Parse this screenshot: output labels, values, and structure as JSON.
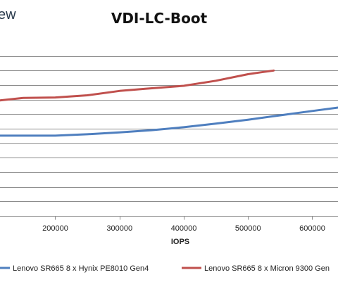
{
  "brand": {
    "text": "ew"
  },
  "chart_data": {
    "type": "line",
    "title": "VDI-LC-Boot",
    "xlabel": "IOPS",
    "ylabel": "",
    "xlim": [
      114000,
      640000
    ],
    "ylim": [
      0,
      12
    ],
    "x_ticks": [
      200000,
      300000,
      400000,
      500000,
      600000
    ],
    "x_tick_labels": [
      "200000",
      "300000",
      "400000",
      "500000",
      "600000"
    ],
    "y_gridlines": [
      1,
      2,
      3,
      4,
      5,
      6,
      7,
      8,
      9,
      10,
      11
    ],
    "grid": true,
    "legend_position": "bottom",
    "series": [
      {
        "name": "Lenovo SR665 8 x Hynix PE8010 Gen4",
        "color": "#4f7fbf",
        "points": [
          [
            114000,
            5.52
          ],
          [
            150000,
            5.52
          ],
          [
            200000,
            5.52
          ],
          [
            250000,
            5.62
          ],
          [
            300000,
            5.75
          ],
          [
            350000,
            5.9
          ],
          [
            400000,
            6.1
          ],
          [
            450000,
            6.35
          ],
          [
            500000,
            6.62
          ],
          [
            550000,
            6.92
          ],
          [
            600000,
            7.22
          ],
          [
            640000,
            7.45
          ]
        ]
      },
      {
        "name": "Lenovo SR665 8 x Micron 9300 Gen",
        "color": "#c0504d",
        "points": [
          [
            114000,
            7.95
          ],
          [
            150000,
            8.12
          ],
          [
            200000,
            8.15
          ],
          [
            250000,
            8.3
          ],
          [
            300000,
            8.6
          ],
          [
            340000,
            8.75
          ],
          [
            400000,
            8.95
          ],
          [
            450000,
            9.3
          ],
          [
            500000,
            9.75
          ],
          [
            520000,
            9.88
          ],
          [
            540000,
            10.0
          ]
        ]
      }
    ]
  }
}
